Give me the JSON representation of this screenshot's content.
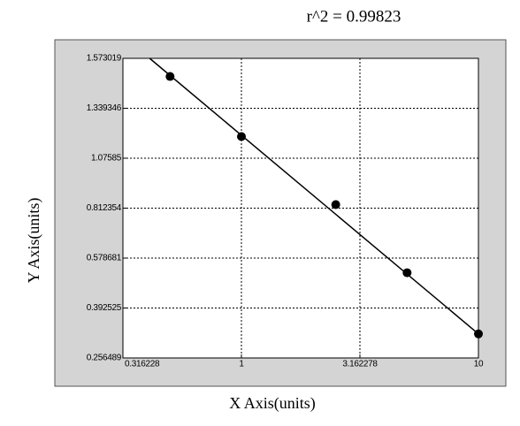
{
  "chart_data": {
    "type": "scatter",
    "title": "r^2  =  0.99823",
    "x_label": "X Axis(units)",
    "y_label": "Y Axis(units)",
    "x_scale": "log",
    "grid": true,
    "xlim": [
      0.316228,
      10
    ],
    "ylim": [
      0.256489,
      1.573019
    ],
    "xticks": [
      0.316228,
      1,
      3.162278,
      10
    ],
    "yticks": [
      0.256489,
      0.392525,
      0.578681,
      0.812354,
      1.07585,
      1.339346,
      1.573019
    ],
    "series": [
      {
        "color": "#000000",
        "x": [
          0.5,
          1,
          2.5,
          5,
          10
        ],
        "values": [
          1.488,
          1.19,
          0.831,
          0.524,
          0.322
        ]
      }
    ],
    "fit_line": {
      "color": "#000000",
      "x": [
        0.41,
        10
      ],
      "values": [
        1.573019,
        0.322
      ]
    }
  }
}
